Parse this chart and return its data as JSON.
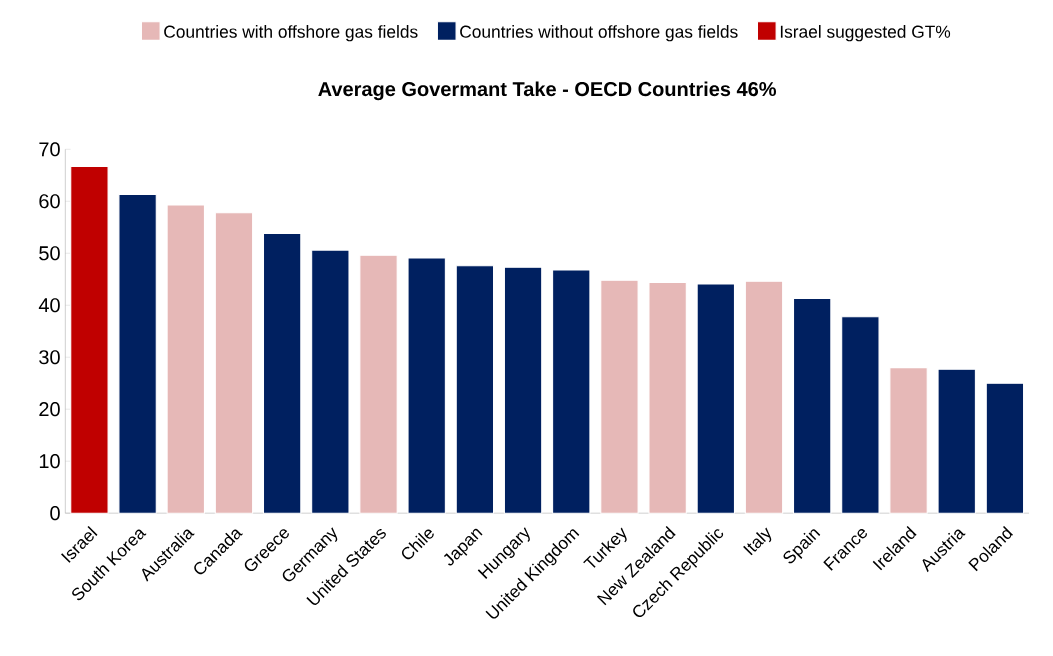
{
  "chart_data": {
    "type": "bar",
    "title": "Average Govermant Take - OECD Countries  46%",
    "categories": [
      "Israel",
      "South Korea",
      "Australia",
      "Canada",
      "Greece",
      "Germany",
      "United States",
      "Chile",
      "Japan",
      "Hungary",
      "United Kingdom",
      "Turkey",
      "New Zealand",
      "Czech Republic",
      "Italy",
      "Spain",
      "France",
      "Ireland",
      "Austria",
      "Poland"
    ],
    "series": [
      {
        "name": "Countries with offshore gas fields",
        "color": "#e6b8b7",
        "values": [
          null,
          null,
          59.3,
          57.8,
          null,
          null,
          49.6,
          null,
          null,
          null,
          null,
          44.8,
          44.4,
          null,
          44.6,
          null,
          null,
          28.0,
          null,
          null
        ]
      },
      {
        "name": "Countries without offshore gas fields",
        "color": "#002060",
        "values": [
          null,
          61.3,
          null,
          null,
          53.8,
          50.6,
          null,
          49.1,
          47.6,
          47.3,
          46.8,
          null,
          null,
          44.1,
          null,
          41.3,
          37.8,
          null,
          27.7,
          25.0
        ]
      },
      {
        "name": "Israel suggested GT%",
        "color": "#c00000",
        "values": [
          66.7,
          null,
          null,
          null,
          null,
          null,
          null,
          null,
          null,
          null,
          null,
          null,
          null,
          null,
          null,
          null,
          null,
          null,
          null,
          null
        ]
      }
    ],
    "ylim": [
      0,
      70
    ],
    "yticks": [
      0,
      10,
      20,
      30,
      40,
      50,
      60,
      70
    ],
    "legend": "top"
  }
}
